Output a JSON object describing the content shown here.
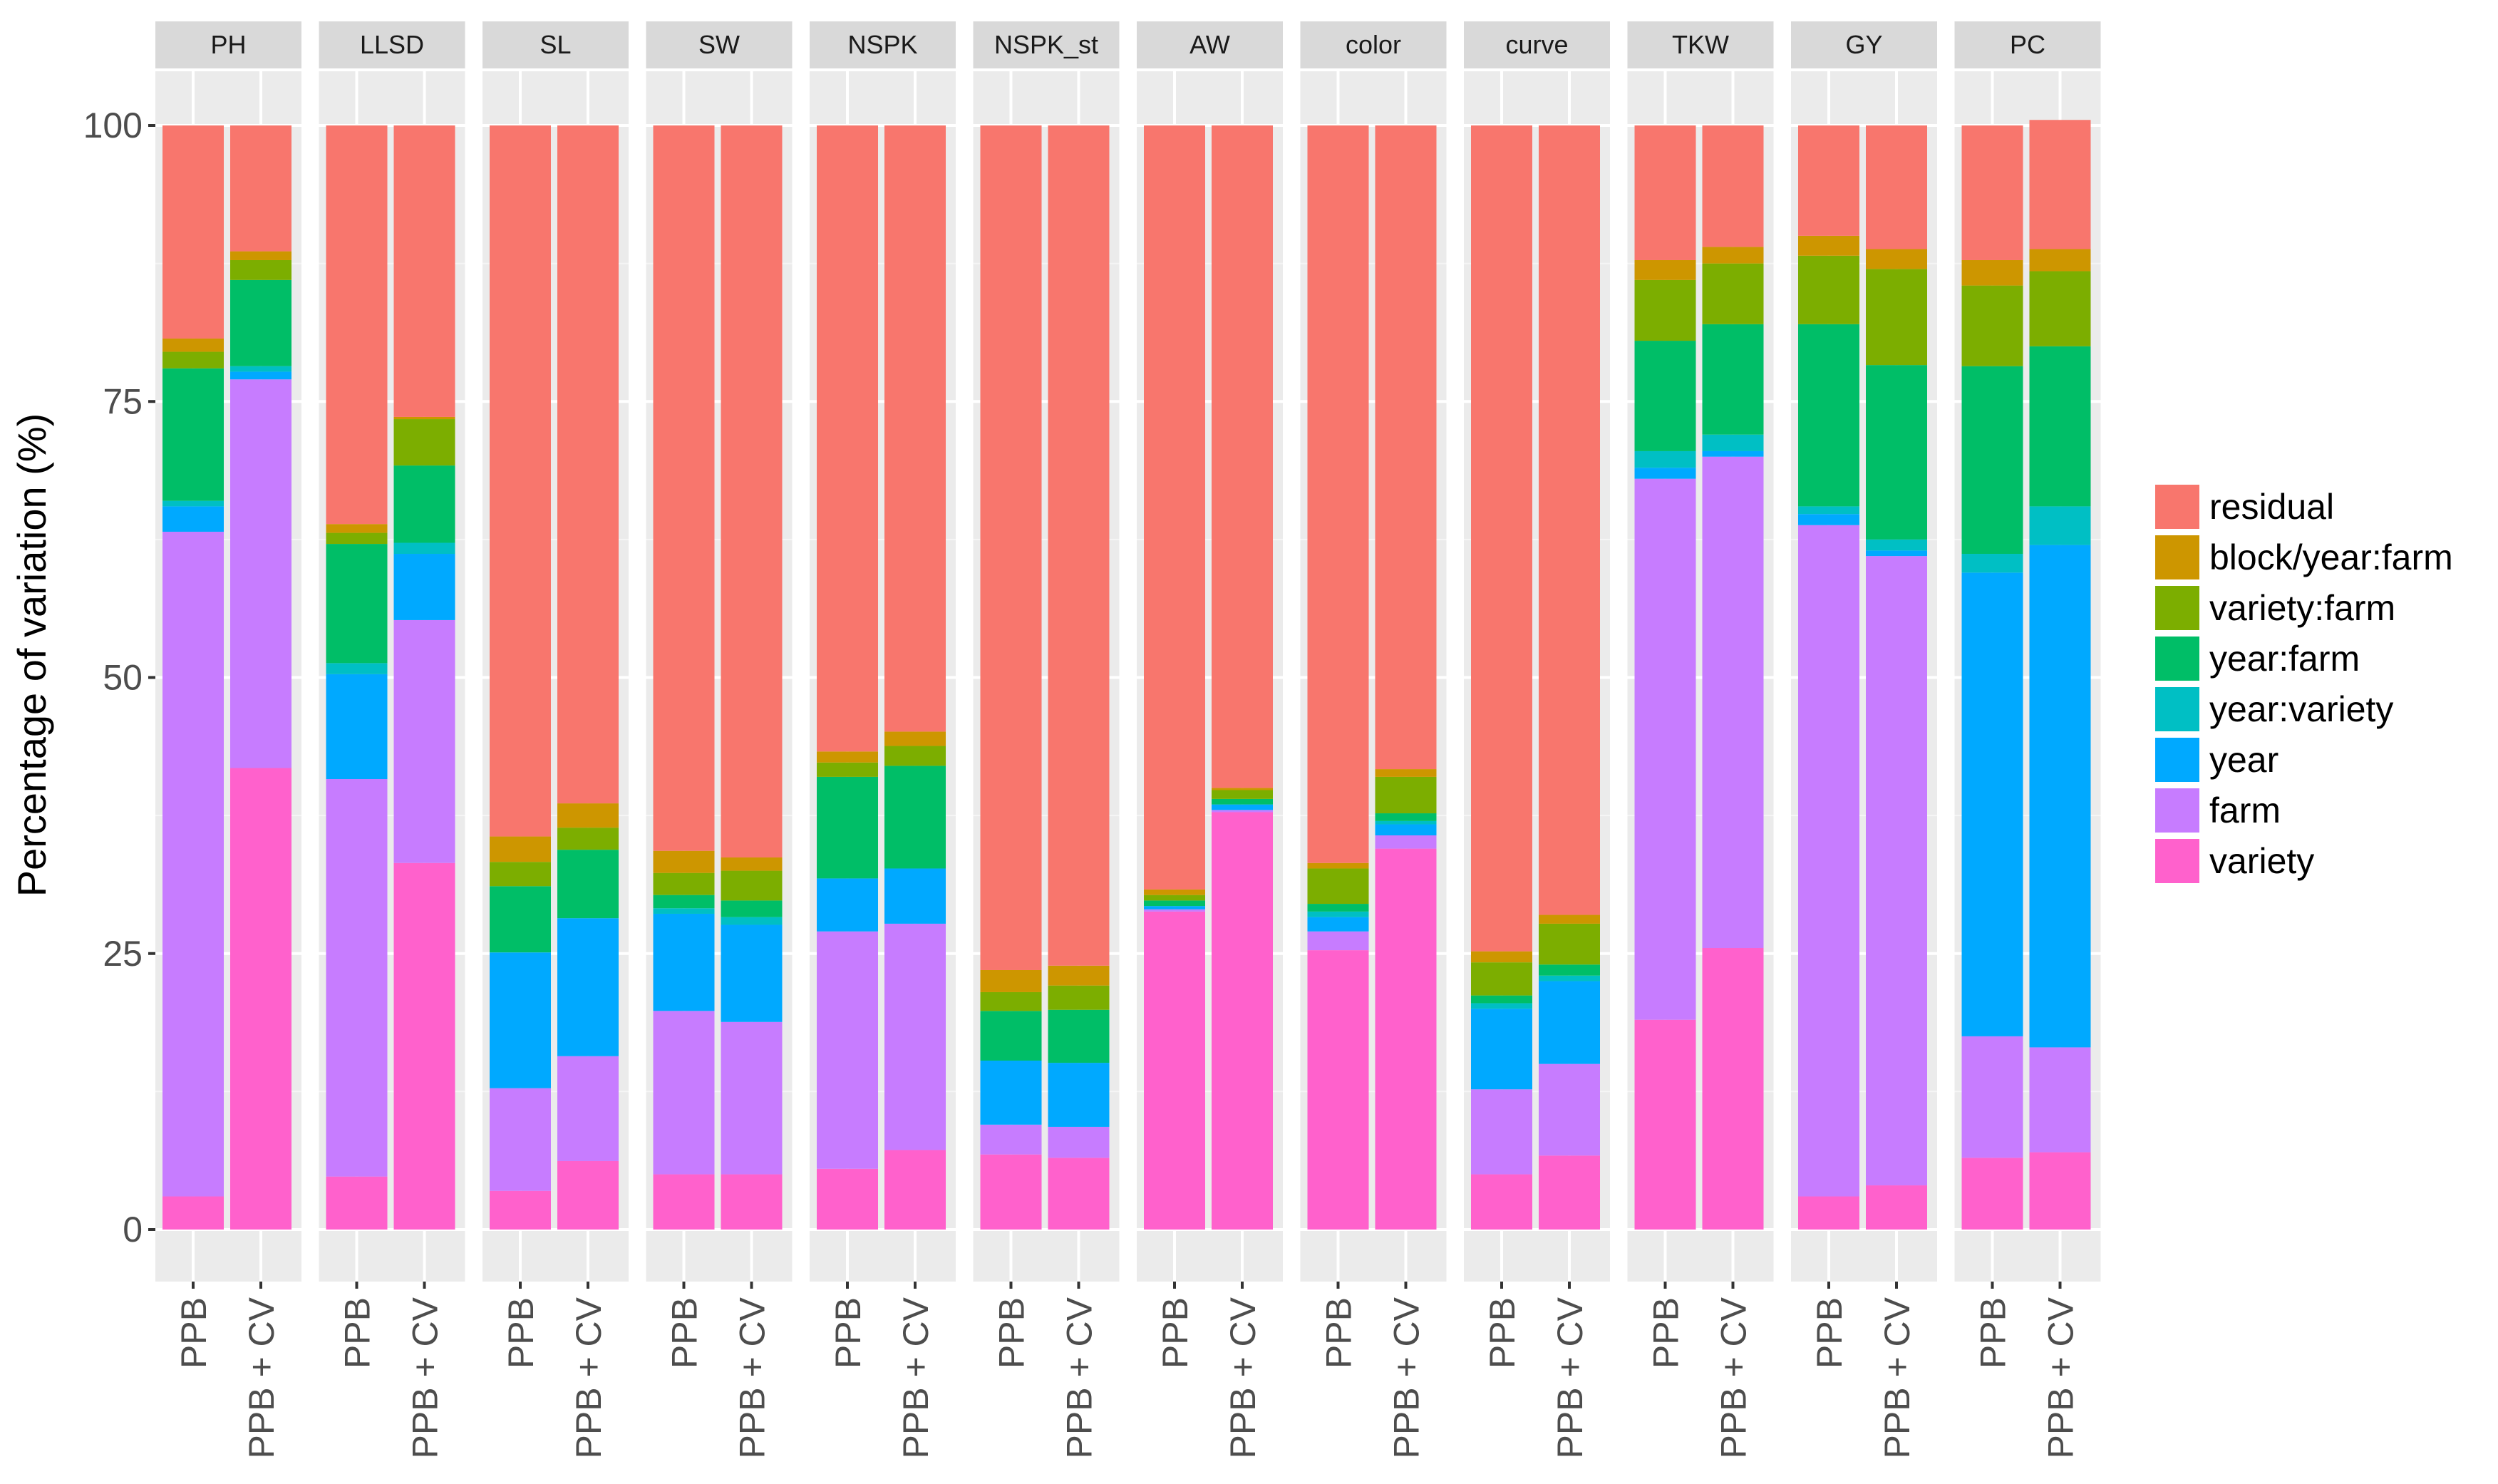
{
  "chart_data": {
    "type": "bar",
    "stacked": true,
    "facet_panels": [
      "PH",
      "LLSD",
      "SL",
      "SW",
      "NSPK",
      "NSPK_st",
      "AW",
      "color",
      "curve",
      "TKW",
      "GY",
      "PC"
    ],
    "categories": [
      "PPB",
      "PPB + CV"
    ],
    "ylabel": "Percentage of variation (%)",
    "xlabel": "",
    "ylim": [
      0,
      100
    ],
    "yticks": [
      "0",
      "25",
      "50",
      "75",
      "100"
    ],
    "grid": true,
    "legend_position": "right",
    "stack_order": [
      "variety",
      "farm",
      "year",
      "year:variety",
      "year:farm",
      "variety:farm",
      "block/year:farm",
      "residual"
    ],
    "legend": [
      "residual",
      "block/year:farm",
      "variety:farm",
      "year:farm",
      "year:variety",
      "year",
      "farm",
      "variety"
    ],
    "colors": {
      "residual": "#F8766D",
      "block/year:farm": "#CD9600",
      "variety:farm": "#7CAE00",
      "year:farm": "#00BE67",
      "year:variety": "#00BFC4",
      "year": "#00A9FF",
      "farm": "#C77CFF",
      "variety": "#FF61CC"
    },
    "panels": [
      {
        "panel": "PH",
        "bars": [
          {
            "category": "PPB",
            "values": {
              "variety": 3,
              "farm": 60.2,
              "year": 2.3,
              "year:variety": 0.5,
              "year:farm": 12,
              "variety:farm": 1.5,
              "block/year:farm": 1.2,
              "residual": 19.3
            }
          },
          {
            "category": "PPB + CV",
            "values": {
              "variety": 41.8,
              "farm": 35.2,
              "year": 0.7,
              "year:variety": 0.5,
              "year:farm": 7.8,
              "variety:farm": 1.8,
              "block/year:farm": 0.8,
              "residual": 11.4
            }
          }
        ]
      },
      {
        "panel": "LLSD",
        "bars": [
          {
            "category": "PPB",
            "values": {
              "variety": 4.8,
              "farm": 36,
              "year": 9.5,
              "year:variety": 1,
              "year:farm": 10.8,
              "variety:farm": 1,
              "block/year:farm": 0.8,
              "residual": 36.1
            }
          },
          {
            "category": "PPB + CV",
            "values": {
              "variety": 33.2,
              "farm": 22,
              "year": 6,
              "year:variety": 1,
              "year:farm": 7,
              "variety:farm": 4.2,
              "block/year:farm": 0.2,
              "residual": 26.4
            }
          }
        ]
      },
      {
        "panel": "SL",
        "bars": [
          {
            "category": "PPB",
            "values": {
              "variety": 3.5,
              "farm": 9.3,
              "year": 12.3,
              "year:variety": 0,
              "year:farm": 6,
              "variety:farm": 2.2,
              "block/year:farm": 2.3,
              "residual": 64.4
            }
          },
          {
            "category": "PPB + CV",
            "values": {
              "variety": 6.2,
              "farm": 9.5,
              "year": 12.5,
              "year:variety": 0,
              "year:farm": 6.2,
              "variety:farm": 2,
              "block/year:farm": 2.2,
              "residual": 61.4
            }
          }
        ]
      },
      {
        "panel": "SW",
        "bars": [
          {
            "category": "PPB",
            "values": {
              "variety": 5,
              "farm": 14.8,
              "year": 8.8,
              "year:variety": 0.5,
              "year:farm": 1.2,
              "variety:farm": 2,
              "block/year:farm": 2,
              "residual": 65.7
            }
          },
          {
            "category": "PPB + CV",
            "values": {
              "variety": 5,
              "farm": 13.8,
              "year": 8.8,
              "year:variety": 0.7,
              "year:farm": 1.5,
              "variety:farm": 2.7,
              "block/year:farm": 1.2,
              "residual": 66.3
            }
          }
        ]
      },
      {
        "panel": "NSPK",
        "bars": [
          {
            "category": "PPB",
            "values": {
              "variety": 5.5,
              "farm": 21.5,
              "year": 4.8,
              "year:variety": 0,
              "year:farm": 9.2,
              "variety:farm": 1.3,
              "block/year:farm": 1,
              "residual": 56.7
            }
          },
          {
            "category": "PPB + CV",
            "values": {
              "variety": 7.2,
              "farm": 20.5,
              "year": 5,
              "year:variety": 0,
              "year:farm": 9.3,
              "variety:farm": 1.8,
              "block/year:farm": 1.3,
              "residual": 54.9
            }
          }
        ]
      },
      {
        "panel": "NSPK_st",
        "bars": [
          {
            "category": "PPB",
            "values": {
              "variety": 6.8,
              "farm": 2.7,
              "year": 5.8,
              "year:variety": 0,
              "year:farm": 4.5,
              "variety:farm": 1.7,
              "block/year:farm": 2,
              "residual": 76.5
            }
          },
          {
            "category": "PPB + CV",
            "values": {
              "variety": 6.5,
              "farm": 2.8,
              "year": 5.8,
              "year:variety": 0,
              "year:farm": 4.8,
              "variety:farm": 2.2,
              "block/year:farm": 1.8,
              "residual": 76.1
            }
          }
        ]
      },
      {
        "panel": "AW",
        "bars": [
          {
            "category": "PPB",
            "values": {
              "variety": 28.8,
              "farm": 0.2,
              "year": 0.3,
              "year:variety": 0,
              "year:farm": 0.5,
              "variety:farm": 0.5,
              "block/year:farm": 0.5,
              "residual": 69.2
            }
          },
          {
            "category": "PPB + CV",
            "values": {
              "variety": 37.8,
              "farm": 0.2,
              "year": 0.5,
              "year:variety": 0,
              "year:farm": 0.5,
              "variety:farm": 0.8,
              "block/year:farm": 0.2,
              "residual": 60
            }
          }
        ]
      },
      {
        "panel": "color",
        "bars": [
          {
            "category": "PPB",
            "values": {
              "variety": 25.3,
              "farm": 1.7,
              "year": 1.3,
              "year:variety": 0.5,
              "year:farm": 0.7,
              "variety:farm": 3.2,
              "block/year:farm": 0.5,
              "residual": 66.8
            }
          },
          {
            "category": "PPB + CV",
            "values": {
              "variety": 34.5,
              "farm": 1.2,
              "year": 1,
              "year:variety": 0.3,
              "year:farm": 0.7,
              "variety:farm": 3.3,
              "block/year:farm": 0.7,
              "residual": 58.3
            }
          }
        ]
      },
      {
        "panel": "curve",
        "bars": [
          {
            "category": "PPB",
            "values": {
              "variety": 5,
              "farm": 7.7,
              "year": 7.3,
              "year:variety": 0.5,
              "year:farm": 0.7,
              "variety:farm": 3,
              "block/year:farm": 1,
              "residual": 74.8
            }
          },
          {
            "category": "PPB + CV",
            "values": {
              "variety": 6.7,
              "farm": 8.3,
              "year": 7.5,
              "year:variety": 0.5,
              "year:farm": 1,
              "variety:farm": 3.7,
              "block/year:farm": 0.8,
              "residual": 71.5
            }
          }
        ]
      },
      {
        "panel": "TKW",
        "bars": [
          {
            "category": "PPB",
            "values": {
              "variety": 19,
              "farm": 49,
              "year": 1,
              "year:variety": 1.5,
              "year:farm": 10,
              "variety:farm": 5.5,
              "block/year:farm": 1.8,
              "residual": 12.2
            }
          },
          {
            "category": "PPB + CV",
            "values": {
              "variety": 25.5,
              "farm": 44.5,
              "year": 0.5,
              "year:variety": 1.5,
              "year:farm": 10,
              "variety:farm": 5.5,
              "block/year:farm": 1.5,
              "residual": 11
            }
          }
        ]
      },
      {
        "panel": "GY",
        "bars": [
          {
            "category": "PPB",
            "values": {
              "variety": 3,
              "farm": 60.8,
              "year": 1,
              "year:variety": 0.7,
              "year:farm": 16.5,
              "variety:farm": 6.2,
              "block/year:farm": 1.8,
              "residual": 10
            }
          },
          {
            "category": "PPB + CV",
            "values": {
              "variety": 4,
              "farm": 57,
              "year": 0.5,
              "year:variety": 1,
              "year:farm": 15.8,
              "variety:farm": 8.7,
              "block/year:farm": 1.8,
              "residual": 11.2
            }
          }
        ]
      },
      {
        "panel": "PC",
        "bars": [
          {
            "category": "PPB",
            "values": {
              "variety": 6.5,
              "farm": 11,
              "year": 42,
              "year:variety": 1.7,
              "year:farm": 17,
              "variety:farm": 7.3,
              "block/year:farm": 2.3,
              "residual": 12.2
            }
          },
          {
            "category": "PPB + CV",
            "values": {
              "variety": 7,
              "farm": 9.5,
              "year": 45.5,
              "year:variety": 3.5,
              "year:farm": 14.5,
              "variety:farm": 6.8,
              "block/year:farm": 2,
              "residual": 11.7
            }
          }
        ]
      }
    ]
  }
}
